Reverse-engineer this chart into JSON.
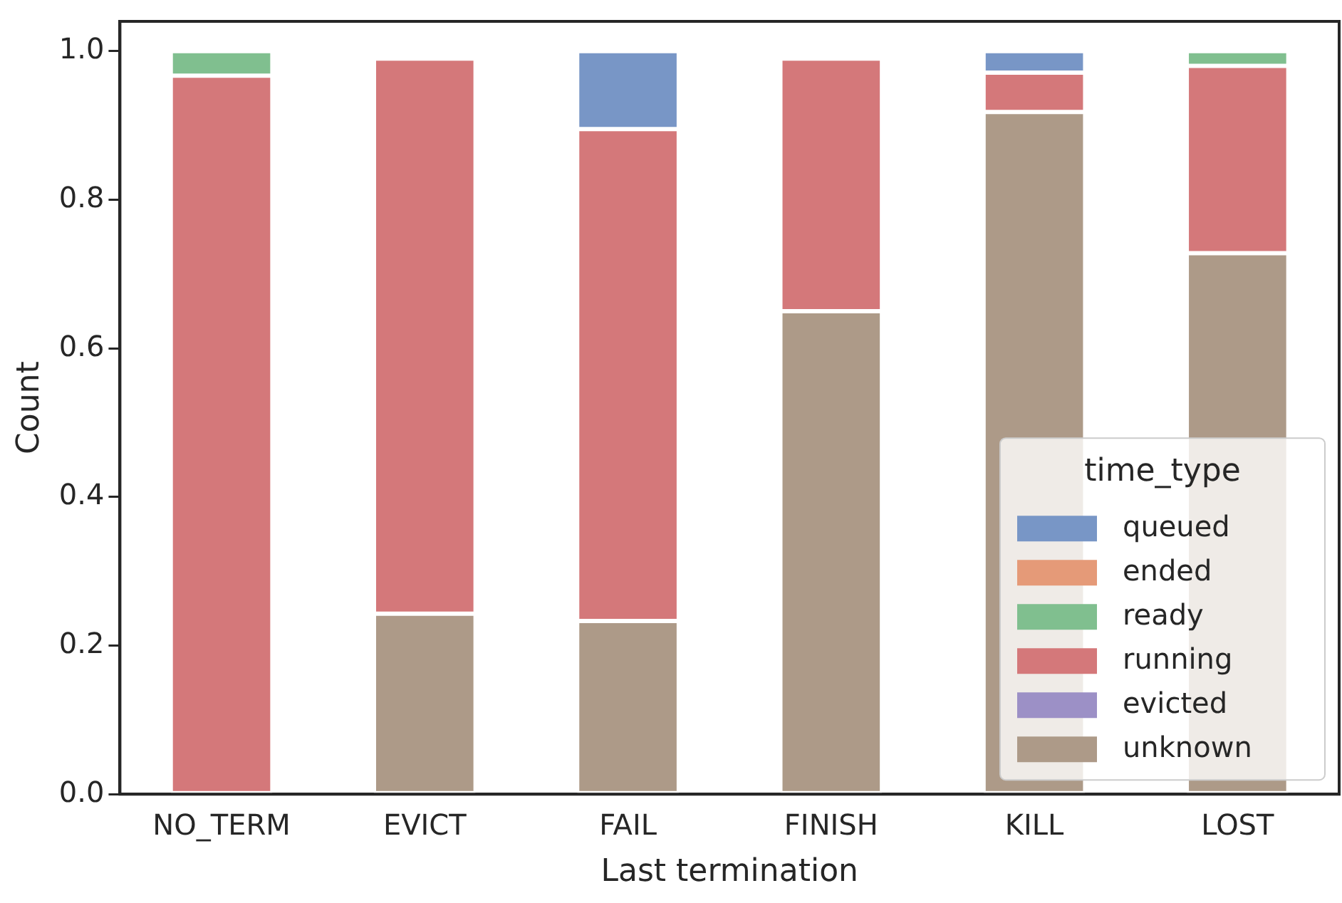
{
  "chart_data": {
    "type": "bar",
    "stacked": true,
    "xlabel": "Last termination",
    "ylabel": "Count",
    "legend_title": "time_type",
    "legend": "bottom right",
    "grid": false,
    "categories": [
      "NO_TERM",
      "EVICT",
      "FAIL",
      "FINISH",
      "KILL",
      "LOST"
    ],
    "ylim": [
      0,
      1.04
    ],
    "yticks": [
      {
        "value": 0,
        "label": "0.0"
      },
      0.2,
      0.4,
      0.6,
      0.8,
      {
        "value": 1,
        "label": "1.0"
      }
    ],
    "series": [
      {
        "name": "unknown",
        "color": "#ad9a88",
        "values": [
          0,
          0.243,
          0.233,
          0.65,
          0.918,
          0.728
        ]
      },
      {
        "name": "evicted",
        "color": "#9c90c6",
        "values": [
          0,
          0,
          0,
          0,
          0,
          0
        ]
      },
      {
        "name": "running",
        "color": "#d4787a",
        "values": [
          0.967,
          0.747,
          0.662,
          0.34,
          0.053,
          0.252
        ]
      },
      {
        "name": "ready",
        "color": "#80bf8f",
        "values": [
          0.033,
          0,
          0,
          0,
          0,
          0.02
        ]
      },
      {
        "name": "ended",
        "color": "#e59a78",
        "values": [
          0,
          0,
          0,
          0,
          0,
          0
        ]
      },
      {
        "name": "queued",
        "color": "#7896c6",
        "values": [
          0,
          0,
          0.105,
          0,
          0.029,
          0
        ]
      }
    ]
  }
}
